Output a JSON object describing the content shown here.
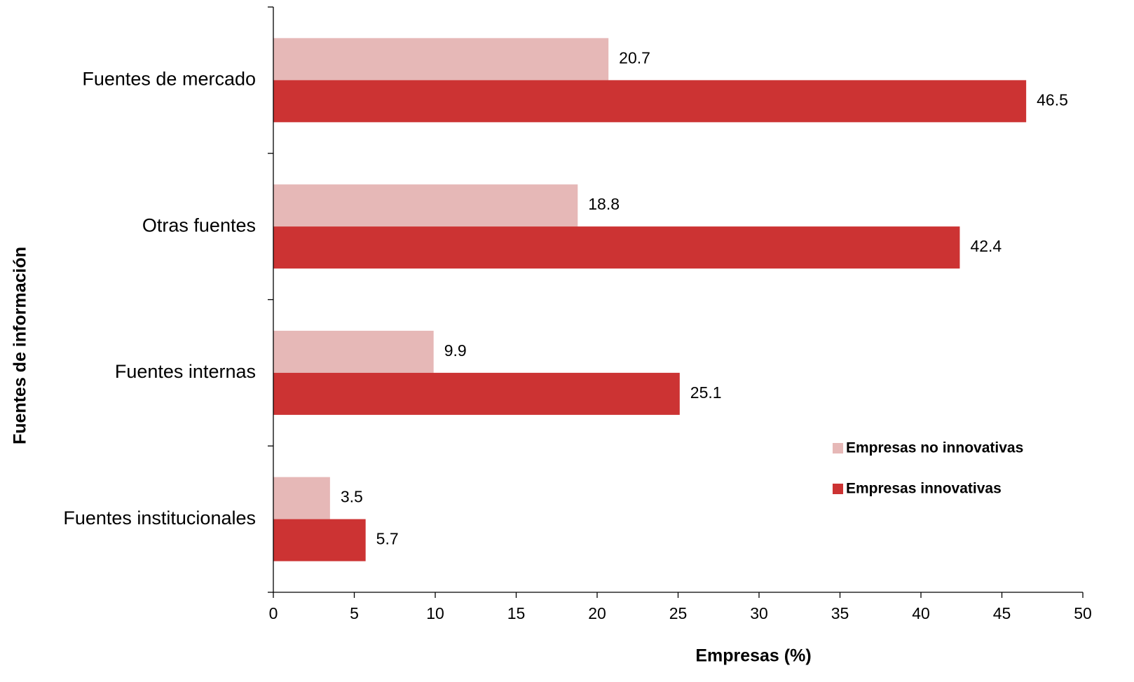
{
  "chart_data": {
    "type": "bar",
    "orientation": "horizontal",
    "categories": [
      "Fuentes de mercado",
      "Otras fuentes",
      "Fuentes internas",
      "Fuentes institucionales"
    ],
    "series": [
      {
        "name": "Empresas no innovativas",
        "values": [
          20.7,
          18.8,
          9.9,
          3.5
        ],
        "color": "#e6b8b7"
      },
      {
        "name": "Empresas innovativas",
        "values": [
          46.5,
          42.4,
          25.1,
          5.7
        ],
        "color": "#cc3333"
      }
    ],
    "xlabel": "Empresas (%)",
    "ylabel": "Fuentes de información",
    "xlim": [
      0,
      50
    ],
    "xticks": [
      0,
      5,
      10,
      15,
      20,
      25,
      30,
      35,
      40,
      45,
      50
    ],
    "grid": false,
    "legend_position": "right"
  }
}
